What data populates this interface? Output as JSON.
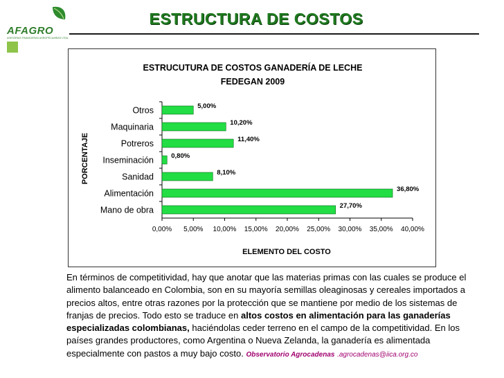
{
  "slide": {
    "title": "ESTRUCTURA DE COSTOS",
    "logo_text": "AFAGRO",
    "logo_subtext": "ASESORIAS FINANCIERAS AGROPECUARIAS LTDA."
  },
  "paragraph": {
    "part1": "En términos de competitividad, hay que anotar que las materias primas con las cuales se produce el alimento balanceado en Colombia, son en su mayoría semillas oleaginosas y cereales importados a precios altos, entre otras razones por la protección que se mantiene por medio de los sistemas de franjas de precios. Todo esto se traduce en ",
    "bold": "altos costos en alimentación para las ganaderías especializadas colombianas,",
    "part2": " haciéndolas ceder terreno en el campo de la competitividad. En los países grandes productores,  como Argentina o Nueva Zelanda,  la ganadería es alimentada especialmente con pastos a muy bajo costo. ",
    "source": "Observatorio Agrocadenas",
    "source_email": ".agrocadenas@iica.org.co"
  },
  "colors": {
    "bar": "#22dd44",
    "title_green": "#1f7a1f",
    "source_magenta": "#a0006e"
  },
  "chart_data": {
    "type": "bar",
    "orientation": "horizontal",
    "title": "ESTRUCUTURA DE COSTOS GANADERÍA DE LECHE",
    "subtitle": "FEDEGAN 2009",
    "xlabel": "ELEMENTO DEL COSTO",
    "ylabel": "PORCENTAJE",
    "categories": [
      "Otros",
      "Maquinaria",
      "Potreros",
      "Inseminación",
      "Sanidad",
      "Alimentación",
      "Mano de obra"
    ],
    "values": [
      5.0,
      10.2,
      11.4,
      0.8,
      8.1,
      36.8,
      27.7
    ],
    "value_labels": [
      "5,00%",
      "10,20%",
      "11,40%",
      "0,80%",
      "8,10%",
      "36,80%",
      "27,70%"
    ],
    "xlim": [
      0,
      40
    ],
    "x_ticks": [
      "0,00%",
      "5,00%",
      "10,00%",
      "15,00%",
      "20,00%",
      "25,00%",
      "30,00%",
      "35,00%",
      "40,00%"
    ],
    "grid": false,
    "legend": "none"
  }
}
